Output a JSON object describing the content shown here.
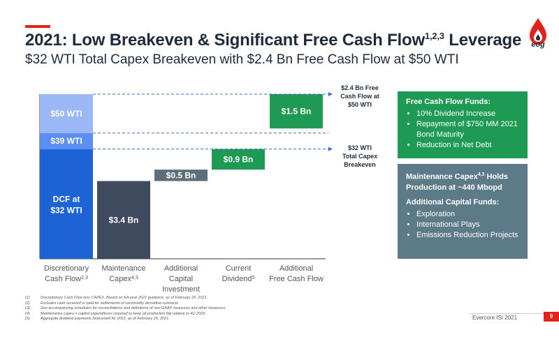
{
  "header": {
    "title": "2021: Low Breakeven & Significant Free Cash Flow",
    "title_sup": "1,2,3",
    "title_tail": " Leverage",
    "subtitle": "$32 WTI Total Capex Breakeven with $2.4 Bn Free Cash Flow at $50 WTI"
  },
  "logo": {
    "text": "eog",
    "icon": "flame-drop-icon"
  },
  "colors": {
    "accent": "#e2231a",
    "bar_dark_blue": "#1e63d6",
    "bar_mid_blue": "#5b8ef0",
    "bar_light_blue": "#9ab8f5",
    "bar_slate": "#404a5e",
    "bar_gray": "#5d6e7a",
    "bar_green": "#1f9a55",
    "dash_line": "#3d6fd4"
  },
  "chart_data": {
    "type": "bar",
    "subtype": "waterfall",
    "unit": "$ Bn",
    "categories": [
      {
        "line1": "Discretionary",
        "line2": "Cash Flow",
        "sup": "2,3",
        "line3": ""
      },
      {
        "line1": "Maintenance",
        "line2": "Capex",
        "sup": "4,3",
        "line3": ""
      },
      {
        "line1": "Additional",
        "line2": "Capital",
        "sup": "",
        "line3": "Investment"
      },
      {
        "line1": "Current",
        "line2": "Dividend",
        "sup": "5",
        "line3": ""
      },
      {
        "line1": "Additional",
        "line2": "Free Cash Flow",
        "sup": "",
        "line3": ""
      }
    ],
    "dcf_stack": [
      {
        "label_line1": "DCF at",
        "label_line2": "$32 WTI",
        "low": 0,
        "high": 4.8,
        "color_key": "bar_dark_blue"
      },
      {
        "label_line1": "$39 WTI",
        "label_line2": "",
        "low": 4.8,
        "high": 5.5,
        "color_key": "bar_mid_blue"
      },
      {
        "label_line1": "$50 WTI",
        "label_line2": "",
        "low": 5.5,
        "high": 7.2,
        "color_key": "bar_light_blue"
      }
    ],
    "steps": [
      {
        "label": "$3.4 Bn",
        "value": 3.4,
        "low": 0,
        "high": 3.4,
        "color_key": "bar_slate"
      },
      {
        "label": "$0.5 Bn",
        "value": 0.5,
        "low": 3.4,
        "high": 3.9,
        "color_key": "bar_gray"
      },
      {
        "label": "$0.9 Bn",
        "value": 0.9,
        "low": 3.9,
        "high": 4.8,
        "color_key": "bar_green"
      },
      {
        "label": "$1.5 Bn",
        "value": 1.5,
        "low": 5.7,
        "high": 7.2,
        "color_key": "bar_green"
      }
    ],
    "reference_lines": [
      7.2,
      5.5,
      4.8
    ],
    "ylim": [
      0,
      7.2
    ]
  },
  "annotations": {
    "fcf50": [
      "$2.4 Bn Free",
      "Cash Flow at",
      "$50 WTI"
    ],
    "be32": [
      "$32 WTI",
      "Total Capex",
      "Breakeven"
    ]
  },
  "panels": {
    "fcf": {
      "heading": "Free Cash Flow Funds:",
      "items": [
        "10% Dividend Increase",
        "Repayment of $750 MM 2021 Bond Maturity",
        "Reduction in Net Debt"
      ]
    },
    "capex": {
      "heading": "Maintenance Capex",
      "heading_sup": "4,3",
      "heading_tail": " Holds Production at ~440 Mbopd",
      "sub_heading": "Additional Capital Funds:",
      "items": [
        "Exploration",
        "International Plays",
        "Emissions Reduction Projects"
      ]
    }
  },
  "footnotes": [
    {
      "n": "(1)",
      "text": "Discretionary Cash Flow less CAPEX. Based on full-year 2021 guidance, as of February 25, 2021."
    },
    {
      "n": "(2)",
      "text": "Excludes cash received or paid for settlements of commodity derivative contracts."
    },
    {
      "n": "(3)",
      "text": "See accompanying schedules for reconciliations and definitions of non-GAAP measures and other measures."
    },
    {
      "n": "(4)",
      "text": "Maintenance capex = capital expenditures required to keep oil production flat relative to 4Q 2020."
    },
    {
      "n": "(5)",
      "text": "Aggregate dividend payments forecasted for 2021, as of February 25, 2021."
    }
  ],
  "footer": {
    "event": "Evercore ISI 2021",
    "page": "9"
  }
}
